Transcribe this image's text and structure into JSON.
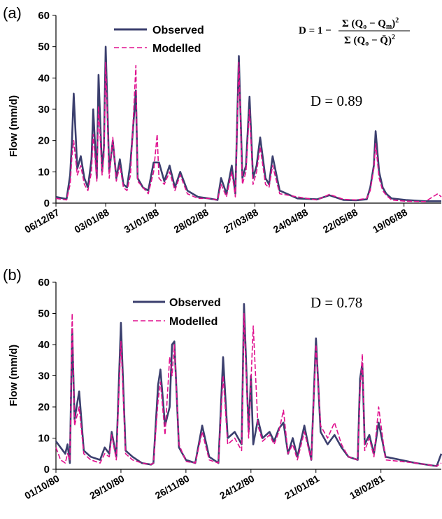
{
  "colors": {
    "observed": "#3b3f6e",
    "modelled": "#e0118f"
  },
  "formula": {
    "lhs": "D = 1 − ",
    "numerator": "Σ (Q",
    "numerator_sub1": "o",
    "numerator_mid": " − Q",
    "numerator_sub2": "m",
    "numerator_end": ")",
    "numerator_sup": "2",
    "denominator": "Σ (Q",
    "denominator_sub1": "o",
    "denominator_mid": " − Q̄)",
    "denominator_sup": "2"
  },
  "chart_data": [
    {
      "type": "line",
      "panel_label": "(a)",
      "ylabel": "Flow (mm/d)",
      "ylim": [
        0,
        60
      ],
      "yticks": [
        0,
        10,
        20,
        30,
        40,
        50,
        60
      ],
      "xlim": [
        "1987-12-06",
        "1988-07-10"
      ],
      "x_tick_labels": [
        "06/12/87",
        "03/01/88",
        "31/01/88",
        "28/02/88",
        "27/03/88",
        "24/04/88",
        "22/05/88",
        "19/06/88"
      ],
      "x_tick_dates": [
        "1987-12-06",
        "1988-01-03",
        "1988-01-31",
        "1988-02-28",
        "1988-03-27",
        "1988-04-24",
        "1988-05-22",
        "1988-06-19"
      ],
      "annotation": "D = 0.89",
      "legend_position": "top-left",
      "series": [
        {
          "name": "Observed",
          "x": [
            "1987-12-06",
            "1987-12-12",
            "1987-12-14",
            "1987-12-15",
            "1987-12-16",
            "1987-12-18",
            "1987-12-20",
            "1987-12-22",
            "1987-12-24",
            "1987-12-26",
            "1987-12-27",
            "1987-12-29",
            "1987-12-30",
            "1988-01-01",
            "1988-01-02",
            "1988-01-03",
            "1988-01-05",
            "1988-01-07",
            "1988-01-09",
            "1988-01-11",
            "1988-01-13",
            "1988-01-15",
            "1988-01-17",
            "1988-01-20",
            "1988-01-21",
            "1988-01-24",
            "1988-01-27",
            "1988-01-30",
            "1988-02-02",
            "1988-02-05",
            "1988-02-08",
            "1988-02-11",
            "1988-02-14",
            "1988-02-18",
            "1988-02-24",
            "1988-03-01",
            "1988-03-06",
            "1988-03-08",
            "1988-03-11",
            "1988-03-14",
            "1988-03-16",
            "1988-03-18",
            "1988-03-20",
            "1988-03-22",
            "1988-03-24",
            "1988-03-26",
            "1988-03-28",
            "1988-03-30",
            "1988-04-02",
            "1988-04-04",
            "1988-04-06",
            "1988-04-10",
            "1988-04-20",
            "1988-05-01",
            "1988-05-08",
            "1988-05-16",
            "1988-05-23",
            "1988-05-29",
            "1988-05-31",
            "1988-06-02",
            "1988-06-03",
            "1988-06-05",
            "1988-06-07",
            "1988-06-09",
            "1988-06-12",
            "1988-06-20",
            "1988-07-01",
            "1988-07-10"
          ],
          "values": [
            2,
            1.3,
            9,
            20,
            35,
            11,
            15,
            8,
            5,
            14,
            30,
            8,
            41,
            10,
            18,
            50,
            10,
            20,
            8,
            14,
            6,
            5,
            13,
            36,
            8,
            5,
            4,
            13,
            13,
            7,
            12,
            5,
            10,
            4,
            2,
            1.5,
            1,
            8,
            3,
            12,
            3,
            47,
            8,
            12,
            34,
            8,
            12,
            21,
            8,
            6,
            15,
            4,
            1.5,
            1.2,
            2.5,
            1,
            0.9,
            1.2,
            5,
            12,
            23,
            10,
            5,
            3,
            1.5,
            1,
            0.6,
            0.6
          ]
        },
        {
          "name": "Modelled",
          "x": [
            "1987-12-06",
            "1987-12-12",
            "1987-12-14",
            "1987-12-15",
            "1987-12-16",
            "1987-12-18",
            "1987-12-20",
            "1987-12-22",
            "1987-12-24",
            "1987-12-26",
            "1987-12-27",
            "1987-12-29",
            "1987-12-30",
            "1988-01-01",
            "1988-01-02",
            "1988-01-03",
            "1988-01-05",
            "1988-01-07",
            "1988-01-09",
            "1988-01-11",
            "1988-01-13",
            "1988-01-15",
            "1988-01-17",
            "1988-01-20",
            "1988-01-21",
            "1988-01-24",
            "1988-01-27",
            "1988-01-30",
            "1988-02-01",
            "1988-02-02",
            "1988-02-05",
            "1988-02-08",
            "1988-02-11",
            "1988-02-14",
            "1988-02-18",
            "1988-02-24",
            "1988-03-01",
            "1988-03-06",
            "1988-03-08",
            "1988-03-11",
            "1988-03-14",
            "1988-03-16",
            "1988-03-18",
            "1988-03-20",
            "1988-03-22",
            "1988-03-24",
            "1988-03-26",
            "1988-03-28",
            "1988-03-30",
            "1988-04-02",
            "1988-04-04",
            "1988-04-06",
            "1988-04-10",
            "1988-04-20",
            "1988-05-01",
            "1988-05-08",
            "1988-05-16",
            "1988-05-23",
            "1988-05-29",
            "1988-05-31",
            "1988-06-02",
            "1988-06-03",
            "1988-06-05",
            "1988-06-07",
            "1988-06-09",
            "1988-06-12",
            "1988-06-20",
            "1988-07-01",
            "1988-07-08",
            "1988-07-10"
          ],
          "values": [
            1.5,
            1,
            6,
            15,
            20,
            9,
            12,
            6,
            4,
            10,
            22,
            7,
            31,
            9,
            15,
            45,
            8,
            21,
            7,
            12,
            5,
            4,
            9,
            44,
            7,
            5,
            3,
            10,
            22,
            8,
            6,
            10,
            4,
            9,
            3,
            1.5,
            1.5,
            1,
            6,
            2,
            10,
            2,
            45,
            6,
            10,
            30,
            6,
            10,
            18,
            6,
            5,
            12,
            3,
            2,
            1,
            2.8,
            1.2,
            1,
            1.5,
            4,
            11,
            19,
            8,
            4,
            2.5,
            1,
            0.6,
            0.5,
            3,
            2
          ]
        }
      ]
    },
    {
      "type": "line",
      "panel_label": "(b)",
      "ylabel": "Flow (mm/d)",
      "ylim": [
        0,
        60
      ],
      "yticks": [
        0,
        10,
        20,
        30,
        40,
        50,
        60
      ],
      "xlim": [
        "1980-10-01",
        "1981-03-16"
      ],
      "x_tick_labels": [
        "01/10/80",
        "29/10/80",
        "26/11/80",
        "24/12/80",
        "21/01/81",
        "18/02/81"
      ],
      "x_tick_dates": [
        "1980-10-01",
        "1980-10-29",
        "1980-11-26",
        "1980-12-24",
        "1981-01-21",
        "1981-02-18"
      ],
      "annotation": "D = 0.78",
      "legend_position": "top-left",
      "series": [
        {
          "name": "Observed",
          "x": [
            "1980-10-01",
            "1980-10-03",
            "1980-10-05",
            "1980-10-06",
            "1980-10-07",
            "1980-10-08",
            "1980-10-09",
            "1980-10-11",
            "1980-10-13",
            "1980-10-16",
            "1980-10-20",
            "1980-10-22",
            "1980-10-24",
            "1980-10-25",
            "1980-10-27",
            "1980-10-29",
            "1980-10-31",
            "1980-11-03",
            "1980-11-07",
            "1980-11-11",
            "1980-11-12",
            "1980-11-14",
            "1980-11-15",
            "1980-11-17",
            "1980-11-19",
            "1980-11-20",
            "1980-11-21",
            "1980-11-23",
            "1980-11-26",
            "1980-11-30",
            "1980-12-03",
            "1980-12-06",
            "1980-12-10",
            "1980-12-12",
            "1980-12-14",
            "1980-12-17",
            "1980-12-20",
            "1980-12-21",
            "1980-12-23",
            "1980-12-24",
            "1980-12-25",
            "1980-12-27",
            "1980-12-29",
            "1981-01-01",
            "1981-01-03",
            "1981-01-05",
            "1981-01-07",
            "1981-01-09",
            "1981-01-11",
            "1981-01-13",
            "1981-01-16",
            "1981-01-19",
            "1981-01-21",
            "1981-01-23",
            "1981-01-26",
            "1981-01-29",
            "1981-02-01",
            "1981-02-04",
            "1981-02-08",
            "1981-02-09",
            "1981-02-10",
            "1981-02-11",
            "1981-02-13",
            "1981-02-15",
            "1981-02-17",
            "1981-02-20",
            "1981-03-05",
            "1981-03-14",
            "1981-03-16"
          ],
          "values": [
            9,
            7,
            5,
            8,
            2,
            45,
            16,
            25,
            6,
            4,
            3,
            7,
            5,
            12,
            4,
            47,
            6,
            4,
            2,
            1.5,
            2,
            27,
            32,
            14,
            20,
            40,
            41,
            7,
            3,
            2,
            14,
            4,
            2,
            36,
            10,
            12,
            8,
            53,
            12,
            30,
            8,
            16,
            10,
            12,
            9,
            13,
            15,
            5,
            10,
            4,
            14,
            3,
            42,
            12,
            8,
            11,
            7,
            4,
            3,
            29,
            34,
            8,
            11,
            5,
            15,
            4,
            2,
            1,
            5
          ]
        },
        {
          "name": "Modelled",
          "x": [
            "1980-10-01",
            "1980-10-03",
            "1980-10-05",
            "1980-10-06",
            "1980-10-07",
            "1980-10-08",
            "1980-10-09",
            "1980-10-11",
            "1980-10-13",
            "1980-10-16",
            "1980-10-20",
            "1980-10-22",
            "1980-10-24",
            "1980-10-25",
            "1980-10-27",
            "1980-10-29",
            "1980-10-31",
            "1980-11-03",
            "1980-11-07",
            "1980-11-11",
            "1980-11-12",
            "1980-11-14",
            "1980-11-15",
            "1980-11-17",
            "1980-11-19",
            "1980-11-20",
            "1980-11-21",
            "1980-11-23",
            "1980-11-26",
            "1980-11-30",
            "1980-12-03",
            "1980-12-06",
            "1980-12-10",
            "1980-12-12",
            "1980-12-14",
            "1980-12-17",
            "1980-12-20",
            "1980-12-21",
            "1980-12-23",
            "1980-12-24",
            "1980-12-25",
            "1980-12-27",
            "1980-12-29",
            "1981-01-01",
            "1981-01-03",
            "1981-01-05",
            "1981-01-07",
            "1981-01-09",
            "1981-01-11",
            "1981-01-13",
            "1981-01-16",
            "1981-01-19",
            "1981-01-21",
            "1981-01-23",
            "1981-01-26",
            "1981-01-29",
            "1981-02-01",
            "1981-02-04",
            "1981-02-08",
            "1981-02-09",
            "1981-02-10",
            "1981-02-11",
            "1981-02-13",
            "1981-02-15",
            "1981-02-17",
            "1981-02-20",
            "1981-03-05",
            "1981-03-14",
            "1981-03-16"
          ],
          "values": [
            7,
            3,
            2,
            5,
            3,
            50,
            14,
            20,
            5,
            3,
            2,
            5,
            4,
            11,
            3,
            41,
            5,
            3,
            2,
            1.5,
            2,
            22,
            28,
            11,
            36,
            30,
            40,
            8,
            2.5,
            2,
            12,
            3,
            2,
            30,
            8,
            10,
            6,
            50,
            10,
            28,
            46,
            14,
            9,
            11,
            8,
            12,
            19,
            5,
            8,
            3,
            12,
            3,
            40,
            14,
            10,
            15,
            8,
            4,
            3,
            25,
            37,
            6,
            10,
            4,
            20,
            3,
            2,
            1,
            2
          ]
        }
      ]
    }
  ]
}
